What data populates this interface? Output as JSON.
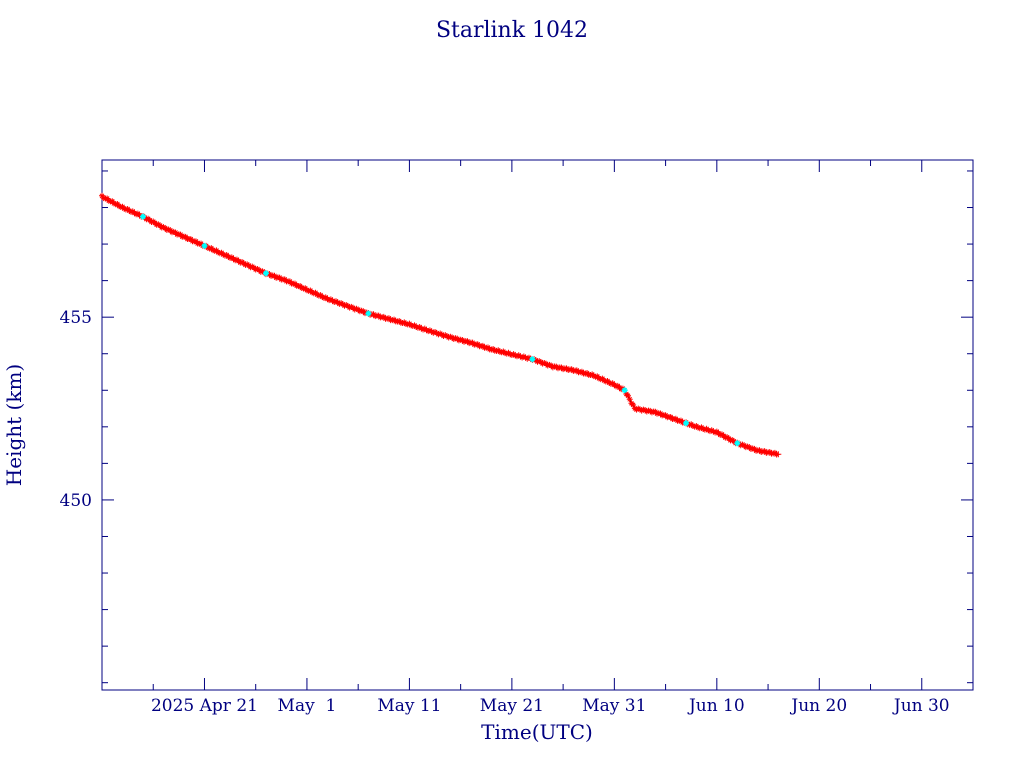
{
  "chart_data": {
    "type": "scatter",
    "title": "Starlink 1042",
    "xlabel": "Time(UTC)",
    "ylabel": "Height (km)",
    "x_tick_labels": [
      "2025 Apr 21",
      "May  1",
      "May 11",
      "May 21",
      "May 31",
      "Jun 10",
      "Jun 20",
      "Jun 30"
    ],
    "x_tick_dates": [
      "2025-04-21",
      "2025-05-01",
      "2025-05-11",
      "2025-05-21",
      "2025-05-31",
      "2025-06-10",
      "2025-06-20",
      "2025-06-30"
    ],
    "xlim": [
      "2025-04-11",
      "2025-07-05"
    ],
    "y_ticks": [
      450,
      455
    ],
    "ylim": [
      444.8,
      459.3
    ],
    "grid": false,
    "colors": {
      "axes": "#000080",
      "points": "#ff0000",
      "highlight": "#00ffff",
      "line": "#000000"
    },
    "series": [
      {
        "points": [
          [
            "2025-04-11",
            458.3
          ],
          [
            "2025-04-13",
            458.0
          ],
          [
            "2025-04-15",
            457.75
          ],
          [
            "2025-04-17",
            457.45
          ],
          [
            "2025-04-19",
            457.2
          ],
          [
            "2025-04-21",
            456.95
          ],
          [
            "2025-04-23",
            456.7
          ],
          [
            "2025-04-25",
            456.45
          ],
          [
            "2025-04-27",
            456.2
          ],
          [
            "2025-04-29",
            456.0
          ],
          [
            "2025-05-01",
            455.75
          ],
          [
            "2025-05-03",
            455.5
          ],
          [
            "2025-05-05",
            455.3
          ],
          [
            "2025-05-07",
            455.1
          ],
          [
            "2025-05-09",
            454.95
          ],
          [
            "2025-05-11",
            454.8
          ],
          [
            "2025-05-13",
            454.62
          ],
          [
            "2025-05-15",
            454.45
          ],
          [
            "2025-05-17",
            454.3
          ],
          [
            "2025-05-19",
            454.12
          ],
          [
            "2025-05-21",
            453.98
          ],
          [
            "2025-05-23",
            453.85
          ],
          [
            "2025-05-25",
            453.65
          ],
          [
            "2025-05-27",
            453.55
          ],
          [
            "2025-05-29",
            453.4
          ],
          [
            "2025-05-31",
            453.15
          ],
          [
            "2025-06-01",
            453.0
          ],
          [
            "2025-06-02",
            452.5
          ],
          [
            "2025-06-04",
            452.4
          ],
          [
            "2025-06-06",
            452.2
          ],
          [
            "2025-06-08",
            452.0
          ],
          [
            "2025-06-10",
            451.85
          ],
          [
            "2025-06-12",
            451.55
          ],
          [
            "2025-06-14",
            451.35
          ],
          [
            "2025-06-16",
            451.25
          ]
        ],
        "highlight_dates": [
          "2025-04-15",
          "2025-04-21",
          "2025-04-27",
          "2025-05-07",
          "2025-05-23",
          "2025-06-01",
          "2025-06-07",
          "2025-06-12"
        ]
      }
    ]
  }
}
